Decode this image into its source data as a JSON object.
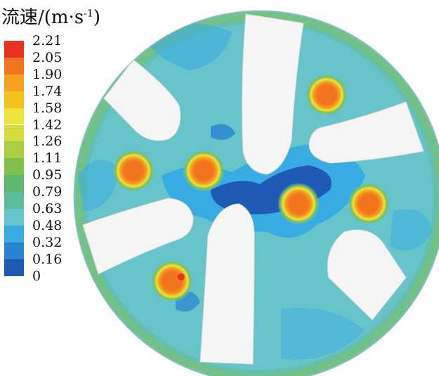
{
  "title": {
    "prefix": "流速/(m·s",
    "sup": "-1",
    "suffix": ")"
  },
  "legend": {
    "ticks": [
      "2.21",
      "2.05",
      "1.90",
      "1.74",
      "1.58",
      "1.42",
      "1.26",
      "1.11",
      "0.95",
      "0.79",
      "0.63",
      "0.48",
      "0.32",
      "0.16",
      "0"
    ],
    "colors": [
      "#e8321e",
      "#f2741f",
      "#f5a01e",
      "#f4c21b",
      "#ede43d",
      "#d3dc3b",
      "#a9ce42",
      "#7ec04a",
      "#5fb86f",
      "#5cbc9a",
      "#67c4cb",
      "#38ace2",
      "#2884cf",
      "#1f5ab6"
    ]
  },
  "diagram": {
    "colors": {
      "background_flow": "#67c4cb",
      "low_flow": "#1f5ab6",
      "medium_low_flow": "#38ace2",
      "rim_flow": "#7ec04a",
      "hot_core": "#f2741f",
      "hot_ring": "#f4c21b",
      "obstacle": "#f5f5f5"
    }
  }
}
